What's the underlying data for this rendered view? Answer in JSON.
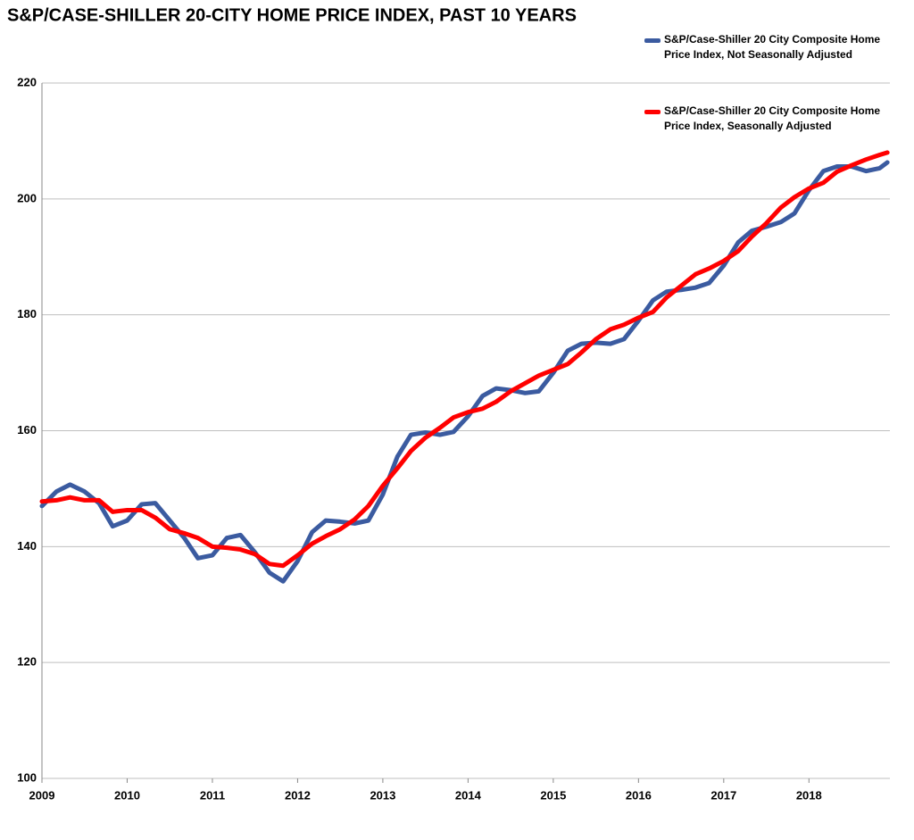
{
  "chart_data": {
    "type": "line",
    "title": "S&P/CASE-SHILLER 20-CITY HOME PRICE INDEX, PAST 10 YEARS",
    "x": [
      2009,
      2009.17,
      2009.33,
      2009.5,
      2009.67,
      2009.83,
      2010,
      2010.17,
      2010.33,
      2010.5,
      2010.67,
      2010.83,
      2011,
      2011.17,
      2011.33,
      2011.5,
      2011.67,
      2011.83,
      2012,
      2012.17,
      2012.33,
      2012.5,
      2012.67,
      2012.83,
      2013,
      2013.17,
      2013.33,
      2013.5,
      2013.67,
      2013.83,
      2014,
      2014.17,
      2014.33,
      2014.5,
      2014.67,
      2014.83,
      2015,
      2015.17,
      2015.33,
      2015.5,
      2015.67,
      2015.83,
      2016,
      2016.17,
      2016.33,
      2016.5,
      2016.67,
      2016.83,
      2017,
      2017.17,
      2017.33,
      2017.5,
      2017.67,
      2017.83,
      2018,
      2018.17,
      2018.33,
      2018.5,
      2018.67,
      2018.83,
      2018.92
    ],
    "series": [
      {
        "name": "S&P/Case-Shiller 20 City Composite Home Price Index, Not Seasonally Adjusted",
        "color": "#3b5ba0",
        "values": [
          147,
          149.5,
          150.7,
          149.5,
          147.5,
          143.5,
          144.5,
          147.3,
          147.5,
          144.5,
          141.5,
          138,
          138.5,
          141.5,
          142,
          139,
          135.5,
          134,
          137.5,
          142.5,
          144.5,
          144.3,
          144,
          144.5,
          149,
          155.5,
          159.3,
          159.7,
          159.3,
          159.8,
          162.5,
          166,
          167.3,
          167,
          166.5,
          166.8,
          170,
          173.8,
          175,
          175.2,
          175,
          175.8,
          179,
          182.5,
          184,
          184.3,
          184.7,
          185.5,
          188.5,
          192.5,
          194.5,
          195.2,
          196,
          197.5,
          201.5,
          204.8,
          205.6,
          205.6,
          204.8,
          205.3,
          206.3
        ]
      },
      {
        "name": "S&P/Case-Shiller 20 City Composite Home Price Index, Seasonally Adjusted",
        "color": "#ff0000",
        "values": [
          147.8,
          148,
          148.5,
          148,
          148,
          146,
          146.3,
          146.3,
          145,
          143,
          142.3,
          141.5,
          140,
          139.8,
          139.5,
          138.7,
          137,
          136.7,
          138.5,
          140.5,
          141.8,
          143,
          144.7,
          147,
          150.5,
          153.5,
          156.5,
          158.8,
          160.5,
          162.3,
          163.2,
          163.8,
          165,
          166.8,
          168.2,
          169.5,
          170.5,
          171.5,
          173.5,
          175.8,
          177.5,
          178.3,
          179.5,
          180.5,
          183,
          185,
          187,
          188,
          189.3,
          191,
          193.5,
          195.8,
          198.5,
          200.3,
          201.8,
          202.8,
          204.7,
          205.8,
          206.8,
          207.6,
          208
        ]
      }
    ],
    "xlim": [
      2009,
      2018.95
    ],
    "xticks": [
      2009,
      2010,
      2011,
      2012,
      2013,
      2014,
      2015,
      2016,
      2017,
      2018
    ],
    "ylim": [
      100,
      220
    ],
    "yticks": [
      100,
      120,
      140,
      160,
      180,
      200,
      220
    ],
    "grid": true,
    "legend": "top-right"
  }
}
